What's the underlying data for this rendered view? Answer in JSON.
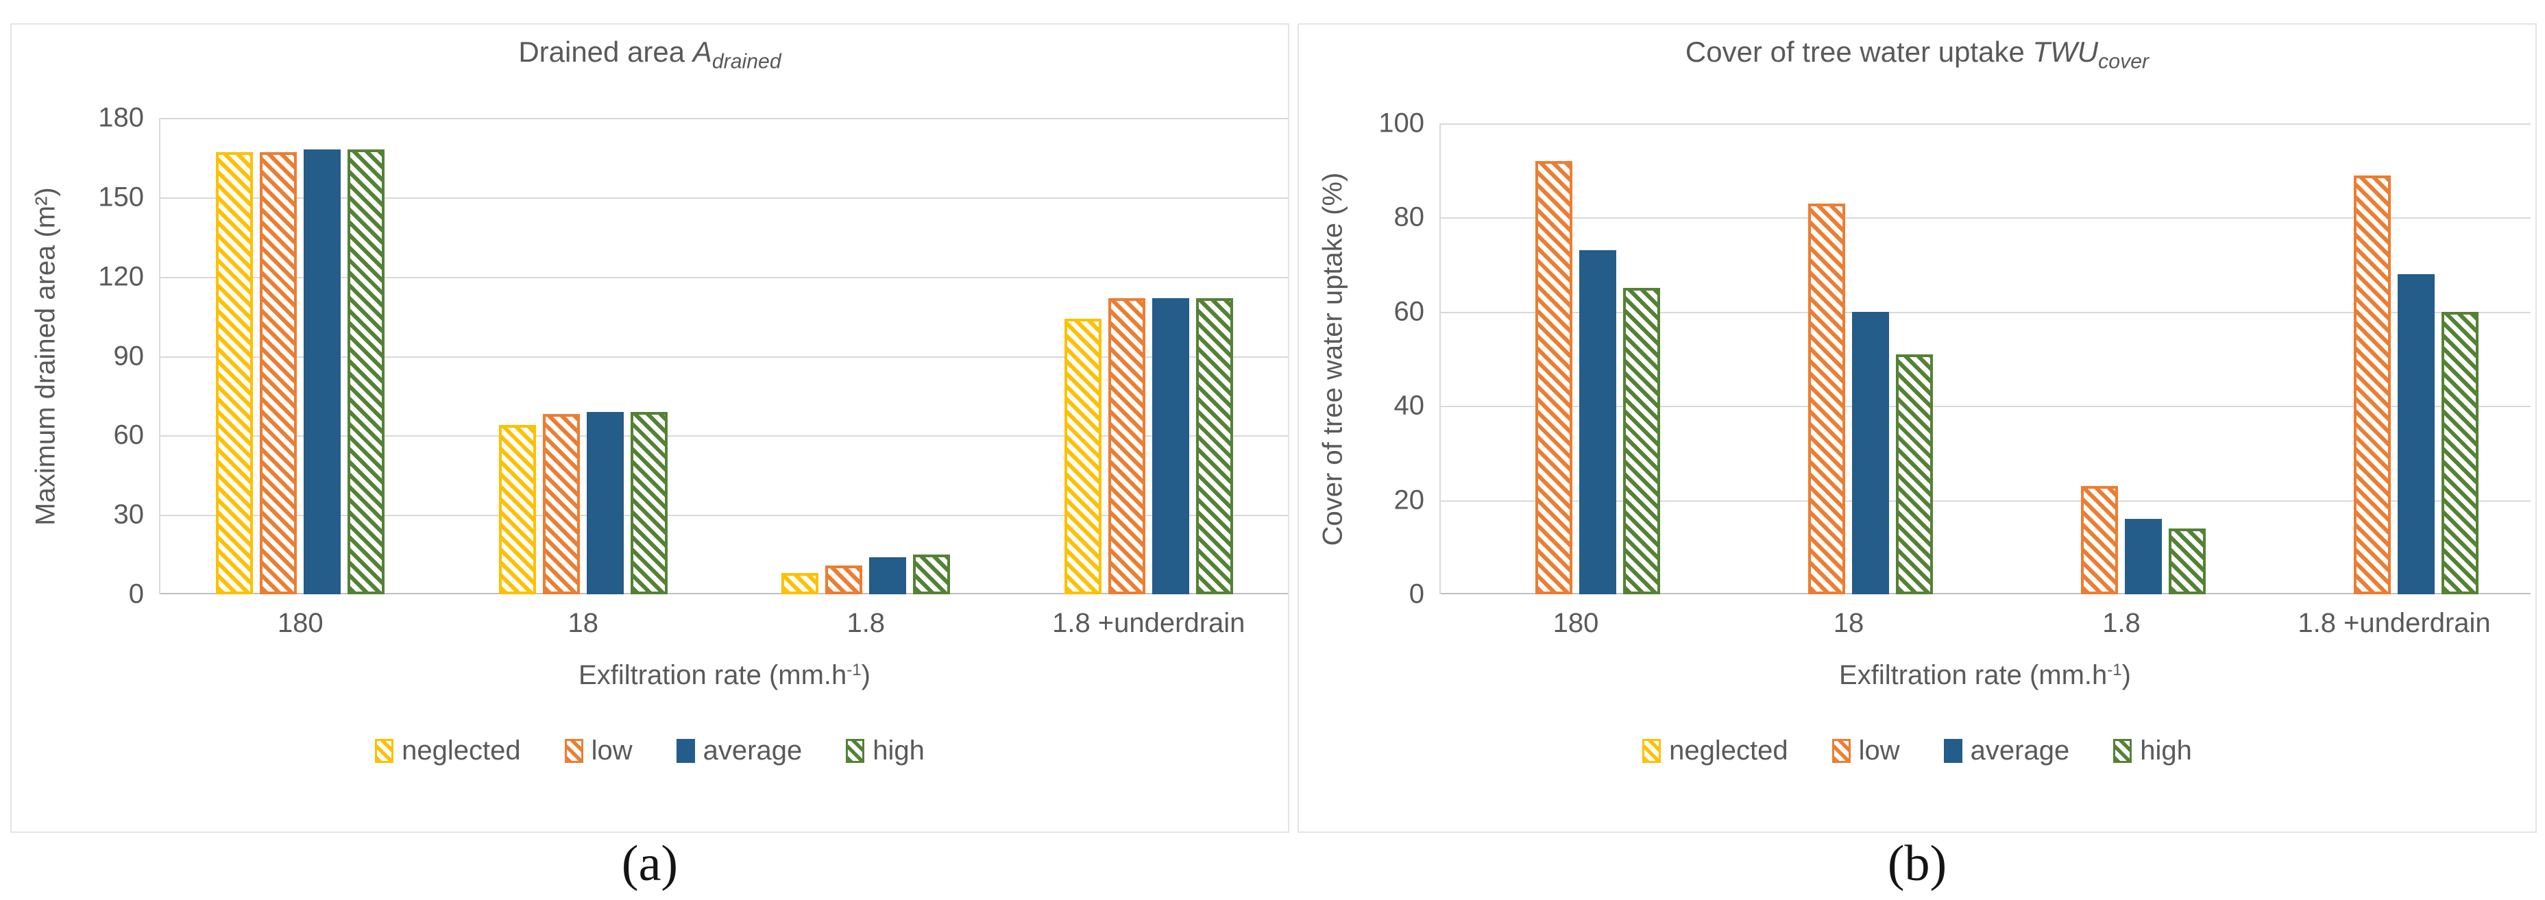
{
  "figure": {
    "captions": {
      "a": "(a)",
      "b": "(b)"
    }
  },
  "colors": {
    "text": "#595959",
    "gridline": "#d9d9d9",
    "axis_line": "#bfbfbf",
    "panel_border": "#e4e4e4",
    "series_neglected": "#FFC000",
    "series_low": "#ED7D31",
    "series_average": "#245C8A",
    "series_high": "#548235"
  },
  "chart_data": [
    {
      "id": "a",
      "type": "bar",
      "title": {
        "text_before": "Drained area ",
        "var": "A",
        "var_sub": "drained"
      },
      "ylabel": "Maximum drained area (m²)",
      "xlabel": {
        "text_before": "Exfiltration rate (mm.h",
        "sup": "-1",
        "text_after": ")"
      },
      "ylim": [
        0,
        180
      ],
      "yticks": [
        0,
        30,
        60,
        90,
        120,
        150,
        180
      ],
      "grid": true,
      "legend_position": "bottom",
      "categories": [
        "180",
        "18",
        "1.8",
        "1.8 +underdrain"
      ],
      "series": [
        {
          "name": "neglected",
          "pattern": "diagonal-hatch",
          "color": "#FFC000",
          "values": [
            167,
            64,
            8,
            104
          ]
        },
        {
          "name": "low",
          "pattern": "diagonal-hatch",
          "color": "#ED7D31",
          "values": [
            167,
            68,
            11,
            112
          ]
        },
        {
          "name": "average",
          "pattern": "solid",
          "color": "#245C8A",
          "values": [
            168,
            69,
            14,
            112
          ]
        },
        {
          "name": "high",
          "pattern": "diagonal-hatch",
          "color": "#548235",
          "values": [
            168,
            69,
            15,
            112
          ]
        }
      ]
    },
    {
      "id": "b",
      "type": "bar",
      "title": {
        "text_before": "Cover of tree water uptake ",
        "var": "TWU",
        "var_sub": "cover"
      },
      "ylabel": "Cover of tree water uptake (%)",
      "xlabel": {
        "text_before": "Exfiltration rate (mm.h",
        "sup": "-1",
        "text_after": ")"
      },
      "ylim": [
        0,
        100
      ],
      "yticks": [
        0,
        20,
        40,
        60,
        80,
        100
      ],
      "grid": true,
      "legend_position": "bottom",
      "categories": [
        "180",
        "18",
        "1.8",
        "1.8 +underdrain"
      ],
      "series": [
        {
          "name": "neglected",
          "pattern": "diagonal-hatch",
          "color": "#FFC000",
          "values": [
            0,
            0,
            0,
            0
          ]
        },
        {
          "name": "low",
          "pattern": "diagonal-hatch",
          "color": "#ED7D31",
          "values": [
            92,
            83,
            23,
            89
          ]
        },
        {
          "name": "average",
          "pattern": "solid",
          "color": "#245C8A",
          "values": [
            73,
            60,
            16,
            68
          ]
        },
        {
          "name": "high",
          "pattern": "diagonal-hatch",
          "color": "#548235",
          "values": [
            65,
            51,
            14,
            60
          ]
        }
      ]
    }
  ]
}
